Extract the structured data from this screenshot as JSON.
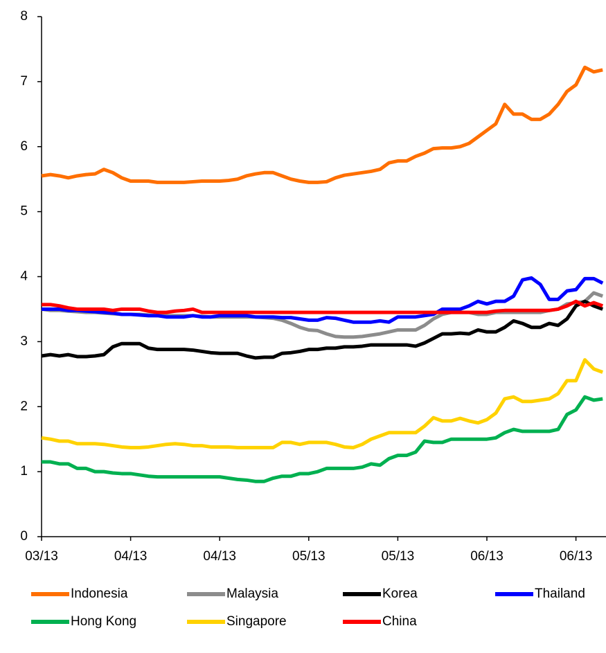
{
  "chart_data": {
    "type": "line",
    "legend": "bottom",
    "categories": [
      "03/13",
      null,
      null,
      null,
      null,
      null,
      null,
      null,
      null,
      null,
      "04/13",
      null,
      null,
      null,
      null,
      null,
      null,
      null,
      null,
      null,
      "04/13",
      null,
      null,
      null,
      null,
      null,
      null,
      null,
      null,
      null,
      "05/13",
      null,
      null,
      null,
      null,
      null,
      null,
      null,
      null,
      null,
      "05/13",
      null,
      null,
      null,
      null,
      null,
      null,
      null,
      null,
      null,
      "06/13",
      null,
      null,
      null,
      null,
      null,
      null,
      null,
      null,
      null,
      "06/13",
      null,
      null,
      null
    ],
    "ylim": [
      0,
      8
    ],
    "yticks": [
      0,
      1,
      2,
      3,
      4,
      5,
      6,
      7,
      8
    ],
    "series": [
      {
        "name": "Indonesia",
        "color": "#ff6f00",
        "values": [
          5.55,
          5.57,
          5.55,
          5.52,
          5.55,
          5.57,
          5.58,
          5.65,
          5.6,
          5.52,
          5.47,
          5.47,
          5.47,
          5.45,
          5.45,
          5.45,
          5.45,
          5.46,
          5.47,
          5.47,
          5.47,
          5.48,
          5.5,
          5.55,
          5.58,
          5.6,
          5.6,
          5.55,
          5.5,
          5.47,
          5.45,
          5.45,
          5.46,
          5.52,
          5.56,
          5.58,
          5.6,
          5.62,
          5.65,
          5.75,
          5.78,
          5.78,
          5.85,
          5.9,
          5.97,
          5.98,
          5.98,
          6.0,
          6.05,
          6.15,
          6.25,
          6.35,
          6.65,
          6.5,
          6.5,
          6.42,
          6.42,
          6.5,
          6.65,
          6.85,
          6.95,
          7.22,
          7.15,
          7.18
        ]
      },
      {
        "name": "Malaysia",
        "color": "#8c8c8c",
        "values": [
          3.5,
          3.48,
          3.48,
          3.47,
          3.46,
          3.45,
          3.45,
          3.44,
          3.43,
          3.42,
          3.42,
          3.42,
          3.41,
          3.4,
          3.4,
          3.4,
          3.4,
          3.4,
          3.39,
          3.38,
          3.38,
          3.38,
          3.38,
          3.38,
          3.38,
          3.37,
          3.36,
          3.33,
          3.28,
          3.22,
          3.18,
          3.17,
          3.12,
          3.08,
          3.07,
          3.07,
          3.08,
          3.1,
          3.12,
          3.15,
          3.18,
          3.18,
          3.18,
          3.25,
          3.35,
          3.42,
          3.45,
          3.45,
          3.45,
          3.42,
          3.42,
          3.45,
          3.45,
          3.45,
          3.45,
          3.45,
          3.45,
          3.48,
          3.5,
          3.58,
          3.6,
          3.62,
          3.75,
          3.7
        ]
      },
      {
        "name": "Korea",
        "color": "#000000",
        "values": [
          2.78,
          2.8,
          2.78,
          2.8,
          2.77,
          2.77,
          2.78,
          2.8,
          2.92,
          2.97,
          2.97,
          2.97,
          2.9,
          2.88,
          2.88,
          2.88,
          2.88,
          2.87,
          2.85,
          2.83,
          2.82,
          2.82,
          2.82,
          2.78,
          2.75,
          2.76,
          2.76,
          2.82,
          2.83,
          2.85,
          2.88,
          2.88,
          2.9,
          2.9,
          2.92,
          2.92,
          2.93,
          2.95,
          2.95,
          2.95,
          2.95,
          2.95,
          2.93,
          2.98,
          3.05,
          3.12,
          3.12,
          3.13,
          3.12,
          3.18,
          3.15,
          3.15,
          3.22,
          3.32,
          3.28,
          3.22,
          3.22,
          3.28,
          3.25,
          3.35,
          3.55,
          3.62,
          3.55,
          3.5
        ]
      },
      {
        "name": "Thailand",
        "color": "#0000ff",
        "values": [
          3.5,
          3.5,
          3.5,
          3.48,
          3.48,
          3.47,
          3.46,
          3.45,
          3.44,
          3.42,
          3.42,
          3.41,
          3.4,
          3.4,
          3.38,
          3.38,
          3.38,
          3.4,
          3.38,
          3.38,
          3.4,
          3.4,
          3.4,
          3.4,
          3.38,
          3.38,
          3.38,
          3.37,
          3.37,
          3.35,
          3.33,
          3.33,
          3.37,
          3.36,
          3.33,
          3.3,
          3.3,
          3.3,
          3.32,
          3.3,
          3.38,
          3.38,
          3.38,
          3.4,
          3.42,
          3.5,
          3.5,
          3.5,
          3.55,
          3.62,
          3.58,
          3.62,
          3.62,
          3.7,
          3.95,
          3.98,
          3.88,
          3.65,
          3.65,
          3.78,
          3.8,
          3.97,
          3.97,
          3.9
        ]
      },
      {
        "name": "Hong Kong",
        "color": "#00b050",
        "values": [
          1.15,
          1.15,
          1.12,
          1.12,
          1.05,
          1.05,
          1.0,
          1.0,
          0.98,
          0.97,
          0.97,
          0.95,
          0.93,
          0.92,
          0.92,
          0.92,
          0.92,
          0.92,
          0.92,
          0.92,
          0.92,
          0.9,
          0.88,
          0.87,
          0.85,
          0.85,
          0.9,
          0.93,
          0.93,
          0.97,
          0.97,
          1.0,
          1.05,
          1.05,
          1.05,
          1.05,
          1.07,
          1.12,
          1.1,
          1.2,
          1.25,
          1.25,
          1.3,
          1.47,
          1.45,
          1.45,
          1.5,
          1.5,
          1.5,
          1.5,
          1.5,
          1.52,
          1.6,
          1.65,
          1.62,
          1.62,
          1.62,
          1.62,
          1.65,
          1.88,
          1.95,
          2.15,
          2.1,
          2.12
        ]
      },
      {
        "name": "Singapore",
        "color": "#ffd200",
        "values": [
          1.52,
          1.5,
          1.47,
          1.47,
          1.43,
          1.43,
          1.43,
          1.42,
          1.4,
          1.38,
          1.37,
          1.37,
          1.38,
          1.4,
          1.42,
          1.43,
          1.42,
          1.4,
          1.4,
          1.38,
          1.38,
          1.38,
          1.37,
          1.37,
          1.37,
          1.37,
          1.37,
          1.45,
          1.45,
          1.42,
          1.45,
          1.45,
          1.45,
          1.42,
          1.38,
          1.37,
          1.42,
          1.5,
          1.55,
          1.6,
          1.6,
          1.6,
          1.6,
          1.7,
          1.83,
          1.78,
          1.78,
          1.82,
          1.78,
          1.75,
          1.8,
          1.9,
          2.12,
          2.15,
          2.08,
          2.08,
          2.1,
          2.12,
          2.2,
          2.4,
          2.4,
          2.72,
          2.58,
          2.53
        ]
      },
      {
        "name": "China",
        "color": "#ff0000",
        "values": [
          3.57,
          3.57,
          3.55,
          3.52,
          3.5,
          3.5,
          3.5,
          3.5,
          3.48,
          3.5,
          3.5,
          3.5,
          3.47,
          3.45,
          3.45,
          3.47,
          3.48,
          3.5,
          3.45,
          3.45,
          3.45,
          3.45,
          3.45,
          3.45,
          3.45,
          3.45,
          3.45,
          3.45,
          3.45,
          3.45,
          3.45,
          3.45,
          3.45,
          3.45,
          3.45,
          3.45,
          3.45,
          3.45,
          3.45,
          3.45,
          3.45,
          3.45,
          3.45,
          3.45,
          3.45,
          3.45,
          3.45,
          3.45,
          3.45,
          3.45,
          3.45,
          3.47,
          3.48,
          3.48,
          3.48,
          3.48,
          3.48,
          3.48,
          3.5,
          3.55,
          3.62,
          3.55,
          3.6,
          3.55
        ]
      }
    ]
  }
}
